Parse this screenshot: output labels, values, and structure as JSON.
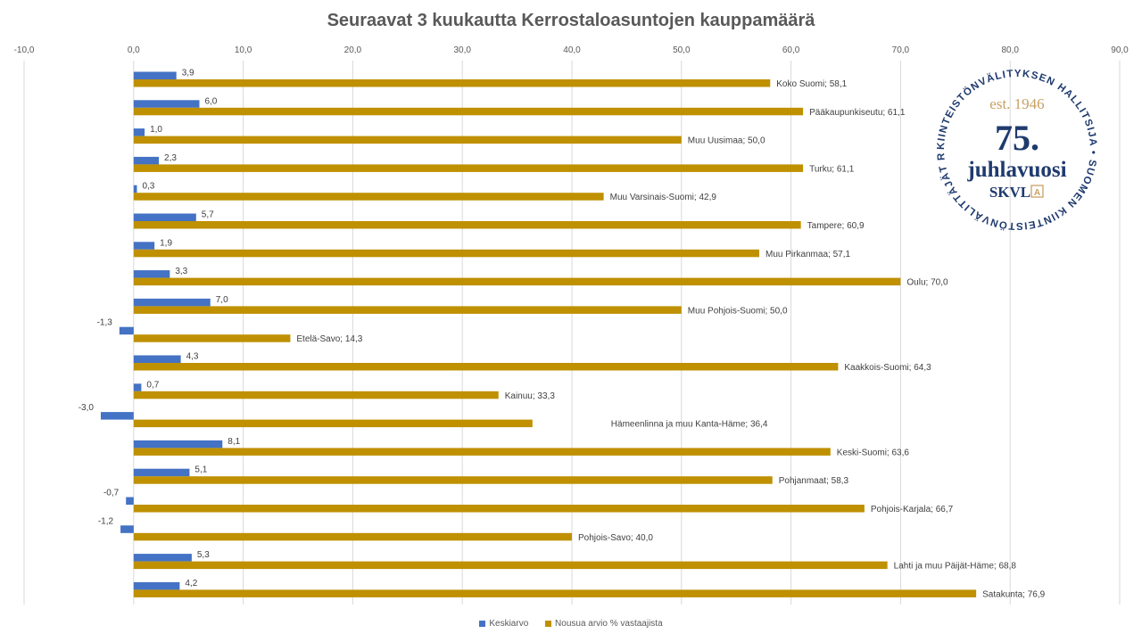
{
  "chart_data": {
    "type": "bar",
    "orientation": "horizontal",
    "title": "Seuraavat 3 kuukautta Kerrostaloasuntojen kauppamäärä",
    "xlim": [
      -10,
      90
    ],
    "xticks": [
      -10,
      0,
      10,
      20,
      30,
      40,
      50,
      60,
      70,
      80,
      90
    ],
    "xtick_labels": [
      "-10,0",
      "0,0",
      "10,0",
      "20,0",
      "30,0",
      "40,0",
      "50,0",
      "60,0",
      "70,0",
      "80,0",
      "90,0"
    ],
    "grid": true,
    "legend_position": "bottom",
    "categories": [
      "Koko Suomi",
      "Pääkaupunkiseutu",
      "Muu Uusimaa",
      "Turku",
      "Muu Varsinais-Suomi",
      "Tampere",
      "Muu Pirkanmaa",
      "Oulu",
      "Muu Pohjois-Suomi",
      "Etelä-Savo",
      "Kaakkois-Suomi",
      "Kainuu",
      "Hämeenlinna ja muu Kanta-Häme",
      "Keski-Suomi",
      "Pohjanmaat",
      "Pohjois-Karjala",
      "Pohjois-Savo",
      "Lahti ja muu Päijät-Häme",
      "Satakunta"
    ],
    "series": [
      {
        "name": "Keskiarvo",
        "color": "#4472C4",
        "values": [
          3.9,
          6.0,
          1.0,
          2.3,
          0.3,
          5.7,
          1.9,
          3.3,
          7.0,
          -1.3,
          4.3,
          0.7,
          -3.0,
          8.1,
          5.1,
          -0.7,
          -1.2,
          5.3,
          4.2
        ],
        "labels": [
          "3,9",
          "6,0",
          "1,0",
          "2,3",
          "0,3",
          "5,7",
          "1,9",
          "3,3",
          "7,0",
          "-1,3",
          "4,3",
          "0,7",
          "-3,0",
          "8,1",
          "5,1",
          "-0,7",
          "-1,2",
          "5,3",
          "4,2"
        ]
      },
      {
        "name": "Nousua arvio % vastaajista",
        "color": "#BF9000",
        "values": [
          58.1,
          61.1,
          50.0,
          61.1,
          42.9,
          60.9,
          57.1,
          70.0,
          50.0,
          14.3,
          64.3,
          33.3,
          36.4,
          63.6,
          58.3,
          66.7,
          40.0,
          68.8,
          76.9
        ],
        "labels": [
          "Koko Suomi; 58,1",
          "Pääkaupunkiseutu; 61,1",
          "Muu Uusimaa; 50,0",
          "Turku; 61,1",
          "Muu Varsinais-Suomi; 42,9",
          "Tampere; 60,9",
          "Muu Pirkanmaa; 57,1",
          "Oulu; 70,0",
          "Muu Pohjois-Suomi; 50,0",
          "Etelä-Savo; 14,3",
          "Kaakkois-Suomi; 64,3",
          "Kainuu; 33,3",
          "Hämeenlinna ja muu Kanta-Häme; 36,4",
          "Keski-Suomi; 63,6",
          "Pohjanmaat; 58,3",
          "Pohjois-Karjala; 66,7",
          "Pohjois-Savo; 40,0",
          "Lahti ja muu Päijät-Häme; 68,8",
          "Satakunta; 76,9"
        ]
      }
    ]
  },
  "logo": {
    "ring_text": "KIINTEISTÖNVÄLITYKSEN HALLITSIJA • SUOMEN KIINTEISTÖNVÄLITTÄJÄT RY •",
    "est": "est. 1946",
    "number": "75.",
    "word": "juhlavuosi",
    "brand": "SKVL",
    "brand_badge": "A",
    "navy": "#1F3A6E",
    "gold": "#C8A064"
  }
}
